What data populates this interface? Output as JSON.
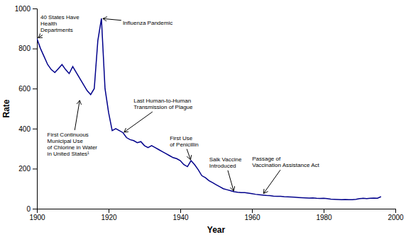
{
  "chart_data": {
    "type": "line",
    "xlabel": "Year",
    "ylabel": "Rate",
    "xlim": [
      1900,
      2000
    ],
    "ylim": [
      0,
      1000
    ],
    "xticks": [
      1900,
      1920,
      1940,
      1960,
      1980,
      2000
    ],
    "yticks": [
      0,
      200,
      400,
      600,
      800,
      1000
    ],
    "color": "#00008B",
    "grid": false,
    "x": [
      1900,
      1901,
      1902,
      1903,
      1904,
      1905,
      1906,
      1907,
      1908,
      1909,
      1910,
      1911,
      1912,
      1913,
      1914,
      1915,
      1916,
      1917,
      1918,
      1919,
      1920,
      1921,
      1922,
      1923,
      1924,
      1925,
      1926,
      1927,
      1928,
      1929,
      1930,
      1931,
      1932,
      1933,
      1934,
      1935,
      1936,
      1937,
      1938,
      1939,
      1940,
      1941,
      1942,
      1943,
      1944,
      1945,
      1946,
      1947,
      1948,
      1949,
      1950,
      1951,
      1952,
      1953,
      1954,
      1955,
      1956,
      1957,
      1958,
      1959,
      1960,
      1961,
      1962,
      1963,
      1964,
      1965,
      1966,
      1967,
      1968,
      1969,
      1970,
      1971,
      1972,
      1973,
      1974,
      1975,
      1976,
      1977,
      1978,
      1979,
      1980,
      1981,
      1982,
      1983,
      1984,
      1985,
      1986,
      1987,
      1988,
      1989,
      1990,
      1991,
      1992,
      1993,
      1994,
      1995,
      1996
    ],
    "values": [
      850,
      800,
      760,
      720,
      695,
      680,
      700,
      720,
      695,
      675,
      710,
      680,
      650,
      620,
      590,
      570,
      600,
      840,
      950,
      600,
      480,
      390,
      400,
      390,
      380,
      355,
      345,
      340,
      330,
      335,
      315,
      305,
      315,
      305,
      295,
      285,
      275,
      265,
      255,
      250,
      240,
      220,
      210,
      240,
      220,
      195,
      165,
      155,
      140,
      130,
      120,
      110,
      100,
      95,
      90,
      85,
      82,
      80,
      80,
      78,
      75,
      72,
      70,
      68,
      66,
      65,
      63,
      62,
      62,
      60,
      59,
      58,
      57,
      56,
      55,
      54,
      53,
      54,
      52,
      51,
      52,
      50,
      48,
      47,
      46,
      45,
      46,
      45,
      45,
      47,
      50,
      52,
      50,
      52,
      53,
      52,
      60
    ],
    "annotations": [
      {
        "text": "40 States Have\nHealth\nDepartments",
        "x": 1900,
        "y": 850
      },
      {
        "text": "Influenza Pandemic",
        "x": 1918,
        "y": 950
      },
      {
        "text": "First Continuous\nMunicipal Use\nof Chlorine in Water\nin United States¹",
        "x": 1912,
        "y": 548
      },
      {
        "text": "Last Human-to-Human\nTransmission of Plague",
        "x": 1924,
        "y": 378
      },
      {
        "text": "First Use\nof Penicillin",
        "x": 1943,
        "y": 238
      },
      {
        "text": "Salk Vaccine\nIntroduced",
        "x": 1955,
        "y": 82
      },
      {
        "text": "Passage of\nVaccination Assistance Act",
        "x": 1963,
        "y": 70
      }
    ]
  }
}
